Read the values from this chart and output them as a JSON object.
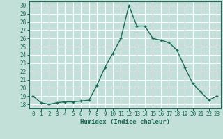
{
  "x": [
    0,
    1,
    2,
    3,
    4,
    5,
    6,
    7,
    8,
    9,
    10,
    11,
    12,
    13,
    14,
    15,
    16,
    17,
    18,
    19,
    20,
    21,
    22,
    23
  ],
  "y": [
    19.0,
    18.2,
    18.0,
    18.2,
    18.3,
    18.3,
    18.4,
    18.5,
    20.3,
    22.5,
    24.2,
    26.0,
    30.0,
    27.5,
    27.5,
    26.0,
    25.8,
    25.5,
    24.6,
    22.5,
    20.5,
    19.5,
    18.5,
    19.0
  ],
  "line_color": "#1a6b5a",
  "bg_color": "#c2e0d8",
  "grid_color": "#ffffff",
  "grid_minor_color": "#d8eeea",
  "xlabel": "Humidex (Indice chaleur)",
  "ylim": [
    17.5,
    30.5
  ],
  "xlim": [
    -0.5,
    23.5
  ],
  "yticks": [
    18,
    19,
    20,
    21,
    22,
    23,
    24,
    25,
    26,
    27,
    28,
    29,
    30
  ],
  "xticks": [
    0,
    1,
    2,
    3,
    4,
    5,
    6,
    7,
    8,
    9,
    10,
    11,
    12,
    13,
    14,
    15,
    16,
    17,
    18,
    19,
    20,
    21,
    22,
    23
  ],
  "tick_fontsize": 5.5,
  "label_fontsize": 6.5,
  "marker": "+",
  "marker_size": 3.5,
  "line_width": 1.0
}
